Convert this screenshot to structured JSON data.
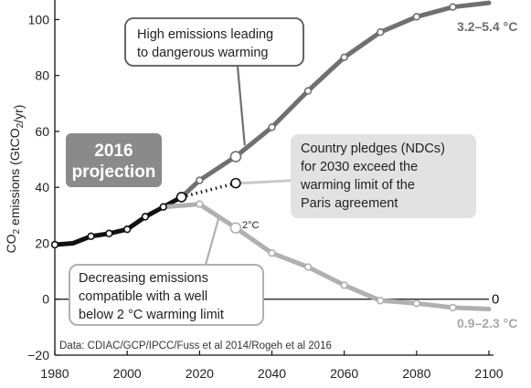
{
  "chart_data": {
    "type": "line",
    "title": "",
    "xlabel": "",
    "ylabel": "CO2 emissions (GtCO2/yr)",
    "xlim": [
      1980,
      2100
    ],
    "ylim": [
      -20,
      107
    ],
    "x_ticks": [
      "1980",
      "2000",
      "2020",
      "2040",
      "2060",
      "2080",
      "2100"
    ],
    "y_ticks": [
      "−20",
      "0",
      "20",
      "40",
      "60",
      "80",
      "100"
    ],
    "x_tick_values": [
      1980,
      2000,
      2020,
      2040,
      2060,
      2080,
      2100
    ],
    "y_tick_values": [
      -20,
      0,
      20,
      40,
      60,
      80,
      100
    ],
    "series": [
      {
        "key": "historical",
        "color": "#111111",
        "points": [
          [
            1980,
            19.5
          ],
          [
            1985,
            20
          ],
          [
            1990,
            22.5
          ],
          [
            1995,
            23.5
          ],
          [
            2000,
            25
          ],
          [
            2005,
            29.5
          ],
          [
            2010,
            33
          ],
          [
            2015,
            36.5
          ]
        ]
      },
      {
        "key": "high",
        "color": "#707070",
        "points": [
          [
            2015,
            36.5
          ],
          [
            2020,
            42.5
          ],
          [
            2030,
            51
          ],
          [
            2040,
            61.5
          ],
          [
            2050,
            74.5
          ],
          [
            2060,
            86.5
          ],
          [
            2070,
            95.5
          ],
          [
            2080,
            101
          ],
          [
            2090,
            104.5
          ],
          [
            2100,
            106
          ]
        ]
      },
      {
        "key": "ndc",
        "color": "#111111",
        "dotted": true,
        "points": [
          [
            2015,
            36.5
          ],
          [
            2030,
            41.5
          ]
        ]
      },
      {
        "key": "low",
        "color": "#b0b0b0",
        "points": [
          [
            2010,
            33
          ],
          [
            2020,
            34
          ],
          [
            2030,
            25.5
          ],
          [
            2040,
            16.5
          ],
          [
            2050,
            11.5
          ],
          [
            2060,
            5
          ],
          [
            2070,
            -0.5
          ],
          [
            2080,
            -1.5
          ],
          [
            2090,
            -3
          ],
          [
            2100,
            -3.5
          ]
        ]
      }
    ],
    "markers": {
      "historical": [
        1980,
        1990,
        1995,
        2000,
        2005,
        2010
      ],
      "high": [
        2020,
        2040,
        2050,
        2060,
        2070,
        2080,
        2090
      ],
      "high_large": [
        2030
      ],
      "low": [
        2020,
        2040,
        2050,
        2060,
        2070,
        2080,
        2090
      ],
      "low_large": [
        2030
      ],
      "origin": [
        2015
      ],
      "ndc": [
        2030
      ]
    },
    "annotations": {
      "high_callout": [
        "High emissions leading",
        "to dangerous warming"
      ],
      "ndc_callout": [
        "Country pledges (NDCs)",
        "for 2030 exceed the",
        "warming limit of the",
        "Paris agreement"
      ],
      "low_callout": [
        "Decreasing emissions",
        "compatible with a well",
        "below 2 °C warming limit"
      ],
      "projection_badge": [
        "2016",
        "projection"
      ],
      "high_end_label": "3.2–5.4 °C",
      "low_end_label": "0.9–2.3 °C",
      "zero_end_label": "0",
      "two_degree_label": "2°C",
      "source": "Data: CDIAC/GCP/IPCC/Fuss et al 2014/Rogeh et al 2016"
    },
    "grid": false
  },
  "colors": {
    "historical": "#111111",
    "high": "#707070",
    "low": "#b0b0b0",
    "badge": "#8a8a8a",
    "ndc_box": "#e2e2e2",
    "ndc_connector": "#c8c8c8"
  }
}
